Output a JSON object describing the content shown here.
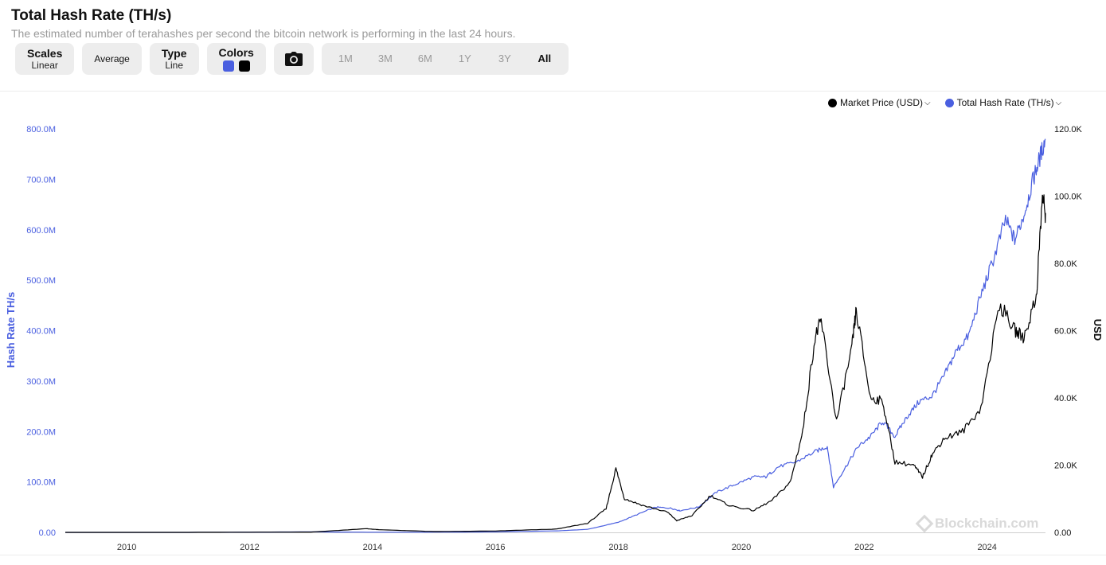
{
  "header": {
    "title": "Total Hash Rate (TH/s)",
    "subtitle": "The estimated number of terahashes per second the bitcoin network is performing in the last 24 hours."
  },
  "toolbar": {
    "scales_label": "Scales",
    "scales_value": "Linear",
    "average_label": "Average",
    "type_label": "Type",
    "type_value": "Line",
    "colors_label": "Colors",
    "color_1": "#4a5fe0",
    "color_2": "#000000",
    "camera_icon": "camera-icon",
    "ranges": [
      "1M",
      "3M",
      "6M",
      "1Y",
      "3Y",
      "All"
    ],
    "active_range": "All"
  },
  "legend": {
    "items": [
      {
        "label": "Market Price (USD)",
        "color": "#000000"
      },
      {
        "label": "Total Hash Rate (TH/s)",
        "color": "#4a5fe0"
      }
    ]
  },
  "watermark": "Blockchain.com",
  "chart_data": {
    "type": "line",
    "title": "Total Hash Rate (TH/s)",
    "x_range": [
      2009.0,
      2024.95
    ],
    "x_ticks": [
      "2010",
      "2012",
      "2014",
      "2016",
      "2018",
      "2020",
      "2022",
      "2024"
    ],
    "y_left": {
      "label": "Hash Rate TH/s",
      "range": [
        0,
        800000000
      ],
      "ticks": [
        "0.00",
        "100.0M",
        "200.0M",
        "300.0M",
        "400.0M",
        "500.0M",
        "600.0M",
        "700.0M",
        "800.0M"
      ]
    },
    "y_right": {
      "label": "USD",
      "range": [
        0,
        120000
      ],
      "ticks": [
        "0.00",
        "20.0K",
        "40.0K",
        "60.0K",
        "80.0K",
        "100.0K",
        "120.0K"
      ]
    },
    "grid": false,
    "legend_position": "top-right",
    "series": [
      {
        "name": "Total Hash Rate (TH/s)",
        "axis": "left",
        "color": "#4a5fe0",
        "x": [
          2009.0,
          2011.0,
          2013.0,
          2014.0,
          2015.0,
          2016.0,
          2017.0,
          2017.5,
          2018.0,
          2018.3,
          2018.6,
          2018.85,
          2019.0,
          2019.3,
          2019.6,
          2019.9,
          2020.2,
          2020.4,
          2020.6,
          2020.9,
          2021.2,
          2021.4,
          2021.5,
          2021.7,
          2021.9,
          2022.1,
          2022.3,
          2022.5,
          2022.7,
          2022.9,
          2023.1,
          2023.3,
          2023.5,
          2023.7,
          2023.9,
          2024.1,
          2024.3,
          2024.45,
          2024.6,
          2024.75,
          2024.85,
          2024.95
        ],
        "y": [
          0,
          0,
          1000000,
          300000,
          400000,
          1000000,
          3000000,
          6000000,
          20000000,
          35000000,
          50000000,
          48000000,
          43000000,
          50000000,
          80000000,
          95000000,
          110000000,
          110000000,
          130000000,
          140000000,
          160000000,
          170000000,
          90000000,
          130000000,
          170000000,
          190000000,
          220000000,
          190000000,
          230000000,
          260000000,
          270000000,
          310000000,
          360000000,
          390000000,
          470000000,
          540000000,
          620000000,
          580000000,
          630000000,
          700000000,
          740000000,
          780000000
        ]
      },
      {
        "name": "Market Price (USD)",
        "axis": "right",
        "color": "#000000",
        "x": [
          2009.0,
          2011.0,
          2013.0,
          2013.9,
          2014.1,
          2015.0,
          2016.0,
          2017.0,
          2017.5,
          2017.8,
          2017.96,
          2018.1,
          2018.4,
          2018.8,
          2018.95,
          2019.2,
          2019.5,
          2019.8,
          2020.2,
          2020.5,
          2020.8,
          2021.0,
          2021.2,
          2021.3,
          2021.55,
          2021.8,
          2021.87,
          2022.1,
          2022.3,
          2022.5,
          2022.8,
          2022.95,
          2023.1,
          2023.3,
          2023.6,
          2023.9,
          2024.2,
          2024.45,
          2024.6,
          2024.8,
          2024.9,
          2024.95
        ],
        "y": [
          0,
          5,
          100,
          1100,
          800,
          250,
          400,
          1000,
          2700,
          7000,
          19000,
          10000,
          8000,
          6000,
          3500,
          5000,
          11000,
          8000,
          6500,
          9500,
          15000,
          30000,
          58000,
          63000,
          33000,
          55000,
          66000,
          40000,
          39000,
          21000,
          20000,
          16500,
          23000,
          28000,
          30000,
          37000,
          68000,
          60000,
          58000,
          70000,
          100000,
          95000
        ]
      }
    ]
  }
}
